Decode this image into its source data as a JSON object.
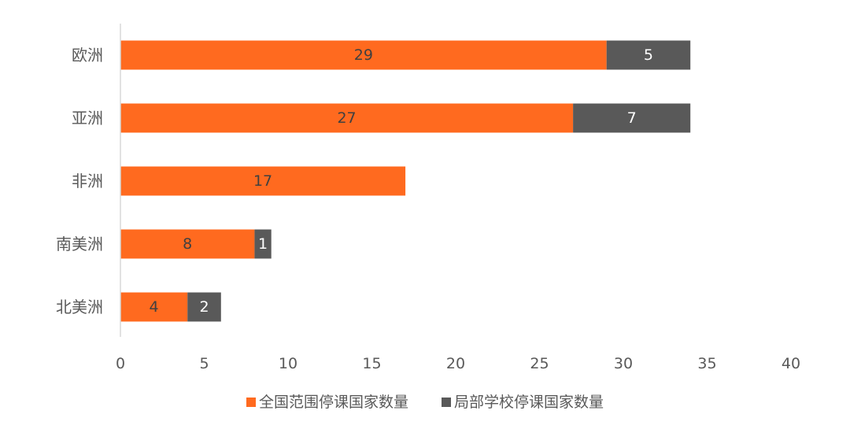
{
  "chart_data": {
    "type": "bar",
    "orientation": "horizontal",
    "stacked": true,
    "categories": [
      "欧洲",
      "亚洲",
      "非洲",
      "南美洲",
      "北美洲"
    ],
    "series": [
      {
        "name": "全国范围停课国家数量",
        "values": [
          29,
          27,
          17,
          8,
          4
        ],
        "color": "#FF6A1F"
      },
      {
        "name": "局部学校停课国家数量",
        "values": [
          5,
          7,
          0,
          1,
          2
        ],
        "color": "#595959"
      }
    ],
    "xlim": [
      0,
      40
    ],
    "xticks": [
      0,
      5,
      10,
      15,
      20,
      25,
      30,
      35,
      40
    ],
    "grid": false,
    "legend_position": "bottom",
    "data_labels": true
  }
}
